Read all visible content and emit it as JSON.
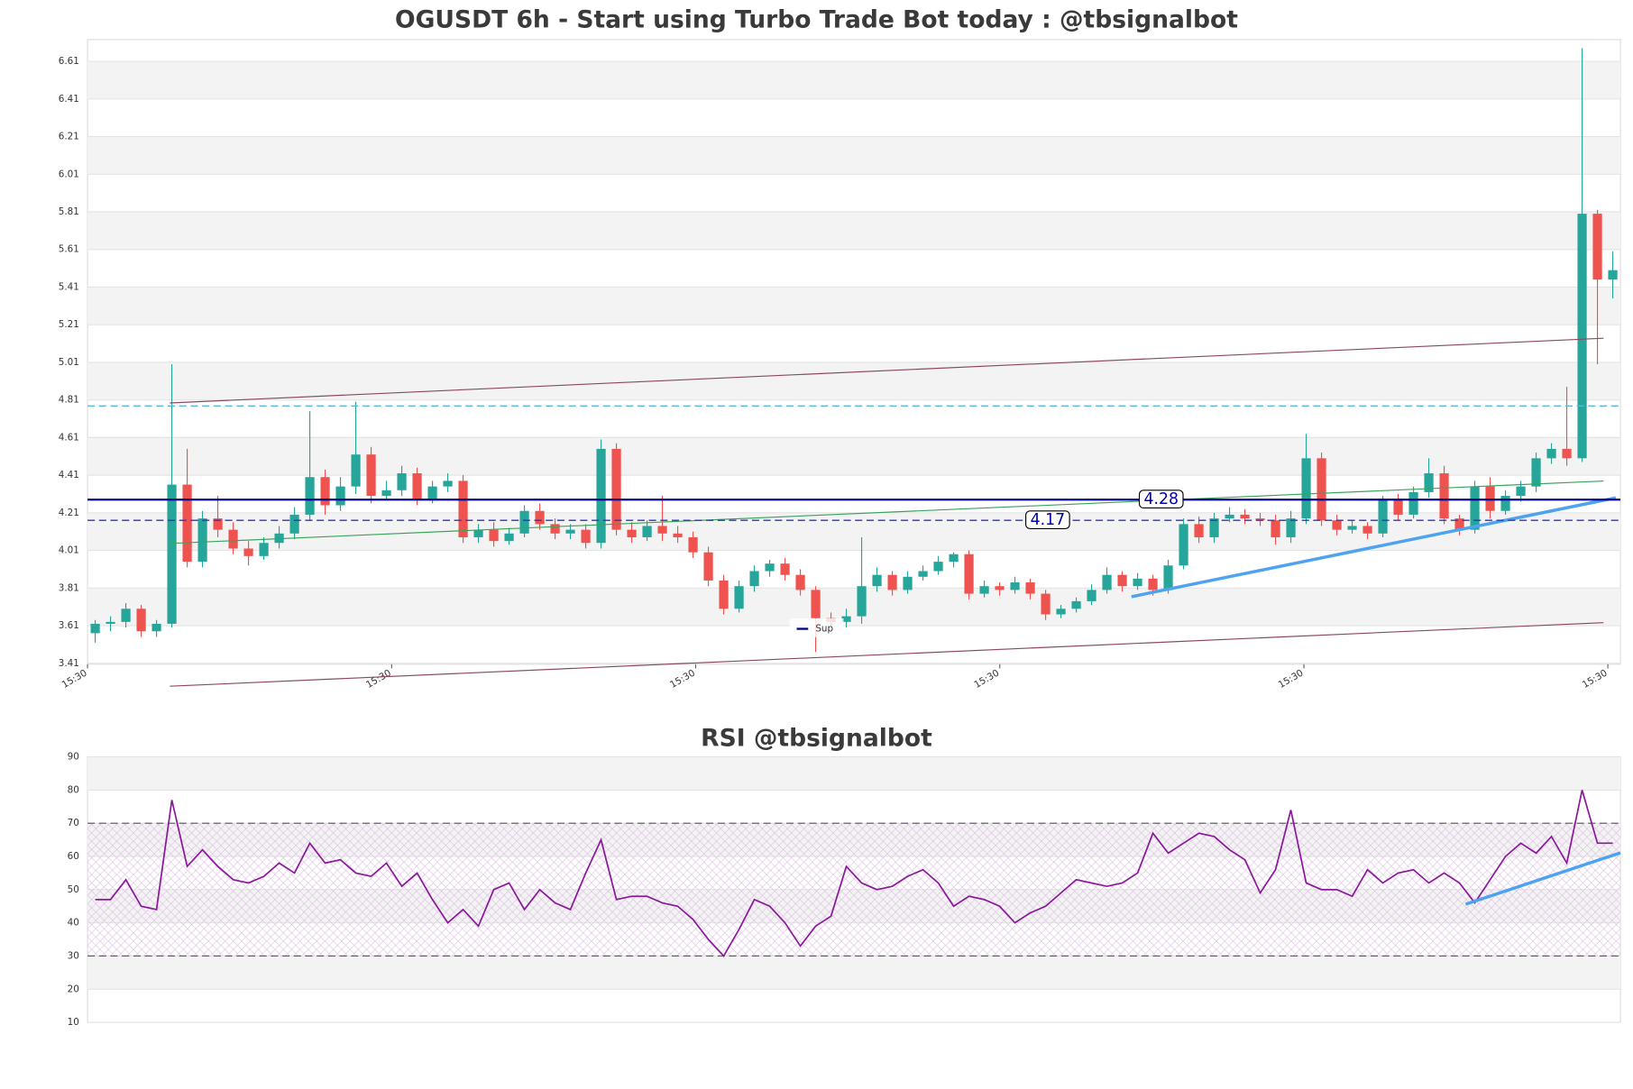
{
  "chart_data": [
    {
      "type": "candlestick",
      "title": "OGUSDT 6h - Start using Turbo Trade Bot today : @tbsignalbot",
      "up_color": "#26a69a",
      "down_color": "#ef5350",
      "open": [
        3.57,
        3.62,
        3.63,
        3.7,
        3.58,
        3.62,
        4.36,
        3.95,
        4.18,
        4.12,
        4.02,
        3.98,
        4.05,
        4.1,
        4.2,
        4.4,
        4.25,
        4.35,
        4.52,
        4.3,
        4.33,
        4.42,
        4.28,
        4.35,
        4.38,
        4.08,
        4.12,
        4.06,
        4.1,
        4.22,
        4.15,
        4.1,
        4.12,
        4.05,
        4.55,
        4.12,
        4.08,
        4.14,
        4.1,
        4.08,
        4.0,
        3.85,
        3.7,
        3.82,
        3.9,
        3.94,
        3.88,
        3.8,
        3.65,
        3.63,
        3.66,
        3.82,
        3.88,
        3.8,
        3.87,
        3.9,
        3.95,
        3.99,
        3.78,
        3.82,
        3.8,
        3.84,
        3.78,
        3.67,
        3.7,
        3.74,
        3.8,
        3.88,
        3.82,
        3.86,
        3.8,
        3.93,
        4.15,
        4.08,
        4.18,
        4.2,
        4.18,
        4.17,
        4.08,
        4.18,
        4.5,
        4.17,
        4.12,
        4.14,
        4.1,
        4.28,
        4.2,
        4.32,
        4.42,
        4.18,
        4.12,
        4.35,
        4.22,
        4.3,
        4.35,
        4.5,
        4.55,
        4.5,
        5.8,
        5.45
      ],
      "high": [
        3.64,
        3.66,
        3.73,
        3.72,
        3.64,
        5.0,
        4.55,
        4.22,
        4.3,
        4.16,
        4.06,
        4.08,
        4.14,
        4.24,
        4.75,
        4.44,
        4.4,
        4.8,
        4.56,
        4.38,
        4.46,
        4.45,
        4.38,
        4.42,
        4.41,
        4.15,
        4.16,
        4.13,
        4.25,
        4.26,
        4.18,
        4.15,
        4.15,
        4.6,
        4.58,
        4.16,
        4.17,
        4.3,
        4.14,
        4.11,
        4.03,
        3.88,
        3.85,
        3.93,
        3.96,
        3.97,
        3.91,
        3.82,
        3.68,
        3.7,
        4.08,
        3.92,
        3.9,
        3.9,
        3.93,
        3.98,
        4.0,
        4.01,
        3.85,
        3.84,
        3.87,
        3.86,
        3.8,
        3.72,
        3.76,
        3.83,
        3.92,
        3.9,
        3.89,
        3.88,
        3.96,
        4.18,
        4.19,
        4.21,
        4.24,
        4.23,
        4.21,
        4.2,
        4.22,
        4.63,
        4.53,
        4.2,
        4.17,
        4.16,
        4.3,
        4.31,
        4.35,
        4.5,
        4.46,
        4.2,
        4.38,
        4.4,
        4.33,
        4.38,
        4.53,
        4.58,
        4.88,
        6.68,
        5.82,
        5.6
      ],
      "low": [
        3.52,
        3.58,
        3.6,
        3.55,
        3.55,
        3.6,
        3.92,
        3.92,
        4.08,
        3.99,
        3.93,
        3.96,
        4.02,
        4.07,
        4.17,
        4.2,
        4.22,
        4.31,
        4.26,
        4.28,
        4.3,
        4.25,
        4.26,
        4.32,
        4.05,
        4.05,
        4.03,
        4.04,
        4.08,
        4.12,
        4.07,
        4.07,
        4.02,
        4.02,
        4.09,
        4.05,
        4.06,
        4.06,
        4.05,
        3.97,
        3.82,
        3.67,
        3.68,
        3.79,
        3.87,
        3.85,
        3.77,
        3.47,
        3.6,
        3.6,
        3.62,
        3.79,
        3.77,
        3.78,
        3.85,
        3.88,
        3.92,
        3.75,
        3.76,
        3.77,
        3.78,
        3.75,
        3.64,
        3.65,
        3.68,
        3.72,
        3.78,
        3.79,
        3.8,
        3.77,
        3.78,
        3.91,
        4.05,
        4.05,
        4.16,
        4.15,
        4.14,
        4.04,
        4.05,
        4.15,
        4.14,
        4.09,
        4.1,
        4.07,
        4.08,
        4.17,
        4.18,
        4.29,
        4.15,
        4.09,
        4.1,
        4.18,
        4.2,
        4.27,
        4.32,
        4.47,
        4.46,
        4.48,
        5.0,
        5.35
      ],
      "close": [
        3.62,
        3.63,
        3.7,
        3.58,
        3.62,
        4.36,
        3.95,
        4.18,
        4.12,
        4.02,
        3.98,
        4.05,
        4.1,
        4.2,
        4.4,
        4.25,
        4.35,
        4.52,
        4.3,
        4.33,
        4.42,
        4.28,
        4.35,
        4.38,
        4.08,
        4.12,
        4.06,
        4.1,
        4.22,
        4.15,
        4.1,
        4.12,
        4.05,
        4.55,
        4.12,
        4.08,
        4.14,
        4.1,
        4.08,
        4.0,
        3.85,
        3.7,
        3.82,
        3.9,
        3.94,
        3.88,
        3.8,
        3.65,
        3.63,
        3.66,
        3.82,
        3.88,
        3.8,
        3.87,
        3.9,
        3.95,
        3.99,
        3.78,
        3.82,
        3.8,
        3.84,
        3.78,
        3.67,
        3.7,
        3.74,
        3.8,
        3.88,
        3.82,
        3.86,
        3.8,
        3.93,
        4.15,
        4.08,
        4.18,
        4.2,
        4.18,
        4.17,
        4.08,
        4.18,
        4.5,
        4.17,
        4.12,
        4.14,
        4.1,
        4.28,
        4.2,
        4.32,
        4.42,
        4.18,
        4.12,
        4.35,
        4.22,
        4.3,
        4.35,
        4.5,
        4.55,
        4.5,
        5.8,
        5.45,
        5.5
      ],
      "xlim": [
        0,
        100
      ],
      "xticks": [
        {
          "value": 0,
          "label": "15:30"
        },
        {
          "value": 19.84,
          "label": "15:30"
        },
        {
          "value": 39.67,
          "label": "15:30"
        },
        {
          "value": 59.51,
          "label": "15:30"
        },
        {
          "value": 79.35,
          "label": "15:30"
        },
        {
          "value": 99.18,
          "label": "15:30"
        }
      ],
      "ylim": [
        3.405,
        6.726
      ],
      "yticks": [
        3.41,
        3.61,
        3.81,
        4.01,
        4.21,
        4.41,
        4.61,
        4.81,
        5.01,
        5.21,
        5.41,
        5.61,
        5.81,
        6.01,
        6.21,
        6.41,
        6.61
      ],
      "grid": true,
      "levels": [
        {
          "value": 4.778,
          "color": "#5bb8d4",
          "dashed": true
        },
        {
          "name": "Sup",
          "value": 4.28,
          "color": "#00008b",
          "dashed": false,
          "labelled": true
        },
        {
          "value": 4.17,
          "color": "#3333bb",
          "dashed": true,
          "labelled": true
        }
      ],
      "lines": [
        {
          "x": [
            5.37,
            98.9
          ],
          "y": [
            4.794,
            5.138
          ],
          "color": "#8b4a5a",
          "width": 1
        },
        {
          "x": [
            5.37,
            98.9
          ],
          "y": [
            3.288,
            3.626
          ],
          "color": "#8b4a5a",
          "width": 1
        },
        {
          "x": [
            5.37,
            98.9
          ],
          "y": [
            4.047,
            4.379
          ],
          "color": "#3aa35a",
          "width": 1
        },
        {
          "x": [
            68.1,
            99.7
          ],
          "y": [
            3.764,
            4.29
          ],
          "color": "#4da3f0",
          "width": 3
        }
      ]
    },
    {
      "type": "line",
      "title": "RSI @tbsignalbot",
      "color": "#8b1a9b",
      "values": [
        47,
        47,
        53,
        45,
        44,
        77,
        57,
        62,
        57,
        53,
        52,
        54,
        58,
        55,
        64,
        58,
        59,
        55,
        54,
        58,
        51,
        55,
        47,
        40,
        44,
        39,
        50,
        52,
        44,
        50,
        46,
        44,
        55,
        65,
        47,
        48,
        48,
        46,
        45,
        41,
        35,
        30,
        38,
        47,
        45,
        40,
        33,
        39,
        42,
        57,
        52,
        50,
        51,
        54,
        56,
        52,
        45,
        48,
        47,
        45,
        40,
        43,
        45,
        49,
        53,
        52,
        51,
        52,
        55,
        67,
        61,
        64,
        67,
        66,
        62,
        59,
        49,
        56,
        74,
        52,
        50,
        50,
        48,
        56,
        52,
        55,
        56,
        52,
        55,
        52,
        46,
        53,
        60,
        64,
        61,
        66,
        58,
        80,
        64,
        64
      ],
      "xlim": [
        0,
        100
      ],
      "ylim": [
        10,
        90
      ],
      "yticks": [
        10,
        20,
        30,
        40,
        50,
        60,
        70,
        80,
        90
      ],
      "levels": [
        70,
        30
      ],
      "lines": [
        {
          "x": [
            89.9,
            100
          ],
          "y": [
            45.6,
            61.1
          ],
          "color": "#4da3f0",
          "width": 3
        }
      ]
    }
  ]
}
